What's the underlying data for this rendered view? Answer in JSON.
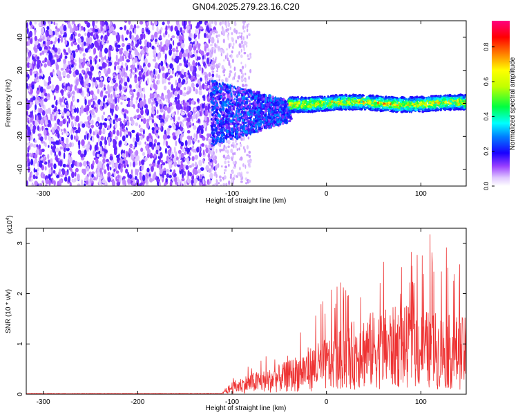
{
  "title": "GN04.2025.279.23.16.C20",
  "chart_data": [
    {
      "type": "heatmap",
      "name": "spectrogram",
      "title": "GN04.2025.279.23.16.C20",
      "xlabel": "Height of straight line (km)",
      "ylabel": "Frequency (Hz)",
      "xlim": [
        -318,
        148
      ],
      "ylim": [
        -50,
        50
      ],
      "xticks": [
        -300,
        -200,
        -100,
        0,
        100
      ],
      "xtick_labels": [
        "-300",
        "-200",
        "-100",
        "0",
        "100"
      ],
      "yticks": [
        -40,
        -20,
        0,
        20,
        40
      ],
      "ytick_labels": [
        "-40",
        "-20",
        "0",
        "20",
        "40"
      ],
      "description_regions": [
        {
          "x_range": [
            -318,
            -120
          ],
          "freq_range": [
            -50,
            50
          ],
          "level": 0.08
        },
        {
          "x_range": [
            -120,
            -40
          ],
          "freq_range": [
            -25,
            15
          ],
          "level": 0.18
        },
        {
          "x_range": [
            -40,
            148
          ],
          "freq_range": [
            -5,
            5
          ],
          "level": 0.45
        }
      ],
      "colorbar": {
        "label": "Normalized spectral amplitude",
        "range": [
          0,
          0.95
        ],
        "ticks": [
          0.0,
          0.2,
          0.4,
          0.6,
          0.8
        ],
        "tick_labels": [
          "0.0",
          "0.2",
          "0.4",
          "0.6",
          "0.8"
        ]
      }
    },
    {
      "type": "line",
      "name": "snr",
      "xlabel": "Height of straight line (km)",
      "ylabel": "SNR (10 * v/v)",
      "yscale_label": "(x10",
      "yscale_exp": "4",
      "color": "#ee3333",
      "xlim": [
        -318,
        148
      ],
      "ylim": [
        0,
        3.3
      ],
      "xticks": [
        -300,
        -200,
        -100,
        0,
        100
      ],
      "xtick_labels": [
        "-300",
        "-200",
        "-100",
        "0",
        "100"
      ],
      "yticks": [
        0,
        1,
        2,
        3
      ],
      "ytick_labels": [
        "0",
        "1",
        "2",
        "3"
      ],
      "envelope": {
        "x": [
          -318,
          -110,
          -100,
          -80,
          -60,
          -40,
          -20,
          0,
          20,
          40,
          60,
          80,
          100,
          120,
          148
        ],
        "mean": [
          0.0,
          0.02,
          0.15,
          0.25,
          0.3,
          0.4,
          0.55,
          0.65,
          0.8,
          0.95,
          1.0,
          1.05,
          1.0,
          0.95,
          0.9
        ],
        "peak": [
          0.0,
          0.05,
          0.4,
          0.6,
          0.8,
          1.0,
          1.5,
          2.0,
          2.3,
          2.6,
          2.7,
          2.6,
          3.1,
          3.3,
          2.4
        ]
      }
    }
  ]
}
